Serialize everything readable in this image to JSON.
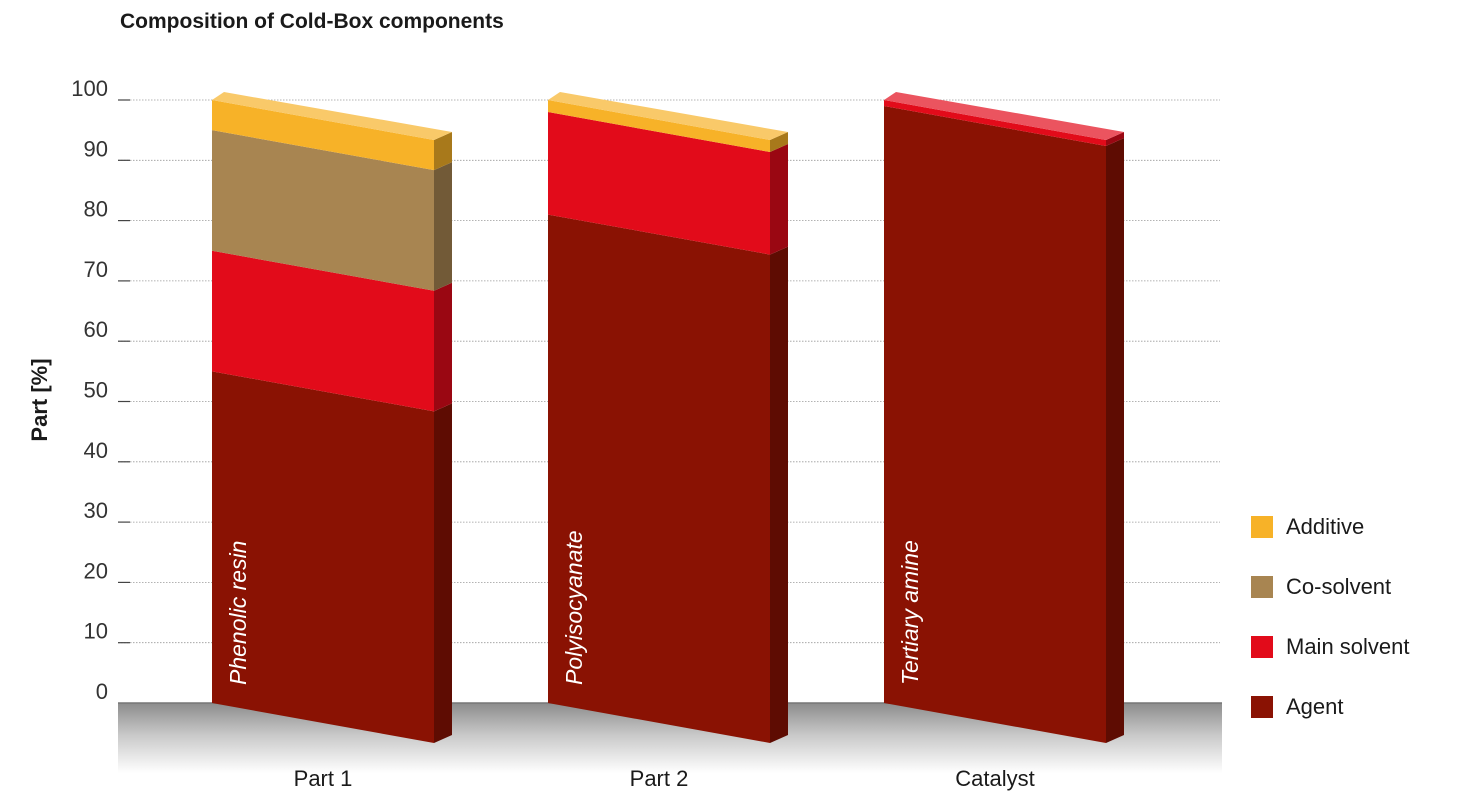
{
  "chart_data": {
    "type": "bar",
    "stacked": true,
    "title": "Composition of Cold-Box components",
    "ylabel": "Part [%]",
    "xlabel": "",
    "ylim": [
      0,
      100
    ],
    "yticks": [
      "100",
      "90",
      "80",
      "70",
      "60",
      "50",
      "40",
      "30",
      "20",
      "10",
      "0"
    ],
    "grid": true,
    "legend_position": "right",
    "categories": [
      "Part 1",
      "Part 2",
      "Catalyst"
    ],
    "bar_labels": [
      "Phenolic resin",
      "Polyisocyanate",
      "Tertiary amine"
    ],
    "series": [
      {
        "name": "Agent",
        "color": "#8a1203",
        "values": [
          55,
          81,
          99
        ]
      },
      {
        "name": "Main solvent",
        "color": "#e20b1a",
        "values": [
          20,
          17,
          1
        ]
      },
      {
        "name": "Co-solvent",
        "color": "#a88551",
        "values": [
          20,
          0,
          0
        ]
      },
      {
        "name": "Additive",
        "color": "#f7b228",
        "values": [
          5,
          2,
          0
        ]
      }
    ],
    "legend_order": [
      "Additive",
      "Co-solvent",
      "Main solvent",
      "Agent"
    ]
  }
}
